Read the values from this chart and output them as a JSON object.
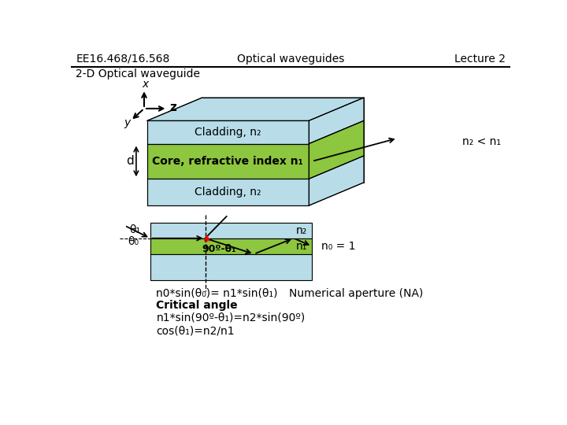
{
  "header_left": "EE16.468/16.568",
  "header_center": "Optical waveguides",
  "header_right": "Lecture 2",
  "subtitle": "2-D Optical waveguide",
  "cladding_color": "#b8dde8",
  "core_color": "#8dc63f",
  "bg_color": "#ffffff",
  "cladding_label": "Cladding, n₂",
  "core_label": "Core, refractive index n₁",
  "n2_lt_n1": "n₂ < n₁",
  "n0_eq_1": "n₀ = 1",
  "snell_law": "n0*sin(θ₀)= n1*sin(θ₁)",
  "na_label": "Numerical aperture (NA)",
  "critical_angle_label": "Critical angle",
  "eq1": "n1*sin(90º-θ₁)=n2*sin(90º)",
  "eq2": "cos(θ₁)=n2/n1",
  "d_label": "d",
  "n2_label": "n₂",
  "n1_label": "n₁",
  "theta1_label": "θ₁",
  "theta0_label": "θ₀",
  "angle_label": "90º-θ₁",
  "x_label": "x",
  "z_label": "z",
  "y_label": "y"
}
